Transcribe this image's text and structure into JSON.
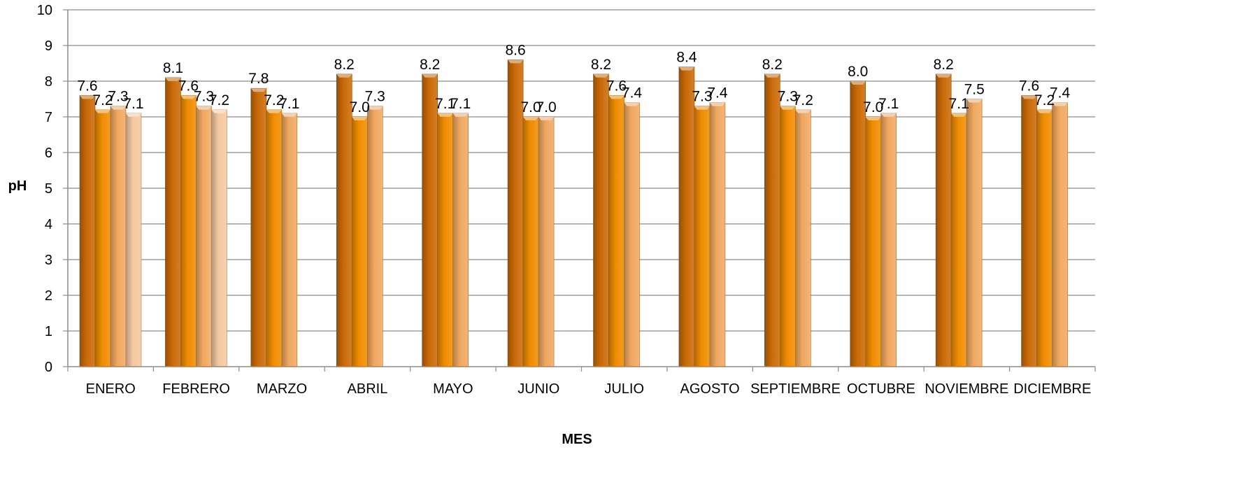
{
  "chart_data": {
    "type": "bar",
    "title": "",
    "xlabel": "MES",
    "ylabel": "pH",
    "ylim": [
      0,
      10
    ],
    "yticks": [
      "0",
      "1",
      "2",
      "3",
      "4",
      "5",
      "6",
      "7",
      "8",
      "9",
      "10"
    ],
    "grid": true,
    "legend": "none",
    "categories": [
      "ENERO",
      "FEBRERO",
      "MARZO",
      "ABRIL",
      "MAYO",
      "JUNIO",
      "JULIO",
      "AGOSTO",
      "SEPTIEMBRE",
      "OCTUBRE",
      "NOVIEMBRE",
      "DICIEMBRE"
    ],
    "series": [
      {
        "color": "#c96a06",
        "values": [
          7.6,
          8.1,
          7.8,
          8.2,
          8.2,
          8.6,
          8.2,
          8.4,
          8.2,
          8.0,
          8.2,
          7.6
        ],
        "labels": [
          "7.6",
          "8.1",
          "7.8",
          "8.2",
          "8.2",
          "8.6",
          "8.2",
          "8.4",
          "8.2",
          "8.0",
          "8.2",
          "7.6"
        ]
      },
      {
        "color": "#f08c00",
        "values": [
          7.2,
          7.6,
          7.2,
          7.0,
          7.1,
          7.0,
          7.6,
          7.3,
          7.3,
          7.0,
          7.1,
          7.2
        ],
        "labels": [
          "7.2",
          "7.6",
          "7.2",
          "7.0",
          "7.1",
          "7.0",
          "7.6",
          "7.3",
          "7.3",
          "7.0",
          "7.1",
          "7.2"
        ]
      },
      {
        "color": "#f0a860",
        "values": [
          7.3,
          7.3,
          7.1,
          7.3,
          7.1,
          7.0,
          7.4,
          7.4,
          7.2,
          7.1,
          7.5,
          7.4
        ],
        "labels": [
          "7.3",
          "7.3",
          "7.1",
          "7.3",
          "7.1",
          "7.0",
          "7.4",
          "7.4",
          "7.2",
          "7.1",
          "7.5",
          "7.4"
        ]
      },
      {
        "color": "#f4c8a0",
        "values": [
          7.1,
          7.2,
          null,
          null,
          null,
          null,
          null,
          null,
          null,
          null,
          null,
          null
        ],
        "labels": [
          "7.1",
          "7.2",
          null,
          null,
          null,
          null,
          null,
          null,
          null,
          null,
          null,
          null
        ]
      }
    ]
  }
}
